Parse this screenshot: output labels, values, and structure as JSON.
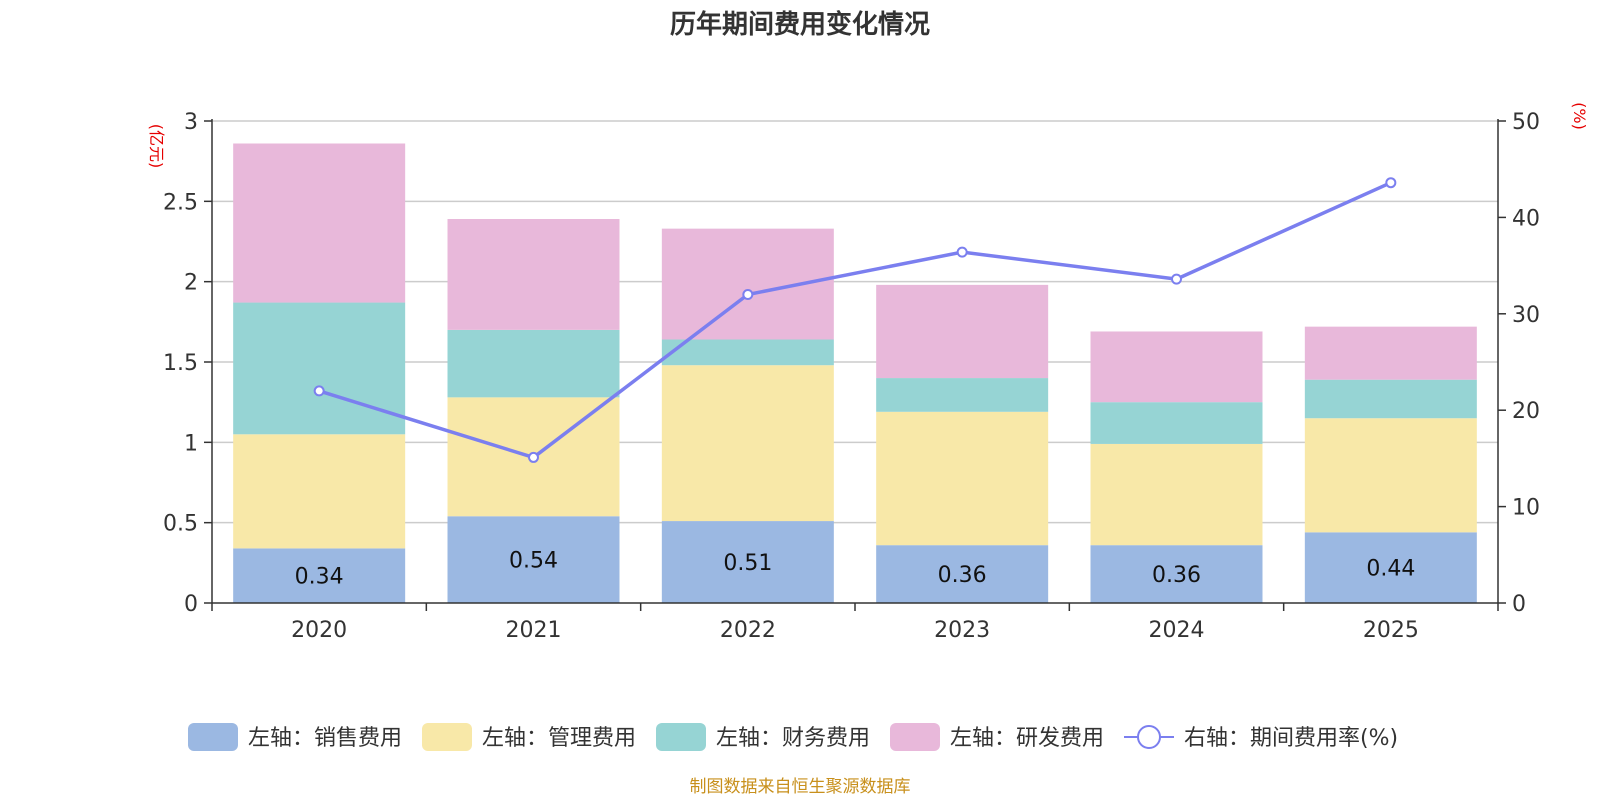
{
  "chart_data": {
    "type": "bar",
    "stacked": true,
    "title": "历年期间费用变化情况",
    "categories": [
      "2020",
      "2021",
      "2022",
      "2023",
      "2024",
      "2025"
    ],
    "y_left": {
      "unit": "(亿元)",
      "ylim": [
        0,
        3
      ],
      "ticks": [
        "0",
        "0.5",
        "1",
        "1.5",
        "2",
        "2.5",
        "3"
      ]
    },
    "y_right": {
      "unit": "(%)",
      "ylim": [
        0,
        50
      ],
      "ticks": [
        "0",
        "10",
        "20",
        "30",
        "40",
        "50"
      ]
    },
    "grid": true,
    "series": [
      {
        "name": "左轴：销售费用",
        "axis": "left",
        "color": "#9bb8e2",
        "values": [
          0.34,
          0.54,
          0.51,
          0.36,
          0.36,
          0.44
        ],
        "labels": [
          "0.34",
          "0.54",
          "0.51",
          "0.36",
          "0.36",
          "0.44"
        ]
      },
      {
        "name": "左轴：管理费用",
        "axis": "left",
        "color": "#f8e8a8",
        "values": [
          0.71,
          0.74,
          0.97,
          0.83,
          0.63,
          0.71
        ]
      },
      {
        "name": "左轴：财务费用",
        "axis": "left",
        "color": "#96d4d4",
        "values": [
          0.82,
          0.42,
          0.16,
          0.21,
          0.26,
          0.24
        ]
      },
      {
        "name": "左轴：研发费用",
        "axis": "left",
        "color": "#e8b8da",
        "values": [
          0.99,
          0.69,
          0.69,
          0.58,
          0.44,
          0.33
        ]
      },
      {
        "name": "右轴：期间费用率(%)",
        "axis": "right",
        "type": "line",
        "color": "#7b7fef",
        "values": [
          22.0,
          15.1,
          32.0,
          36.4,
          33.6,
          43.6
        ]
      }
    ],
    "legend_position": "bottom",
    "source": "制图数据来自恒生聚源数据库"
  }
}
